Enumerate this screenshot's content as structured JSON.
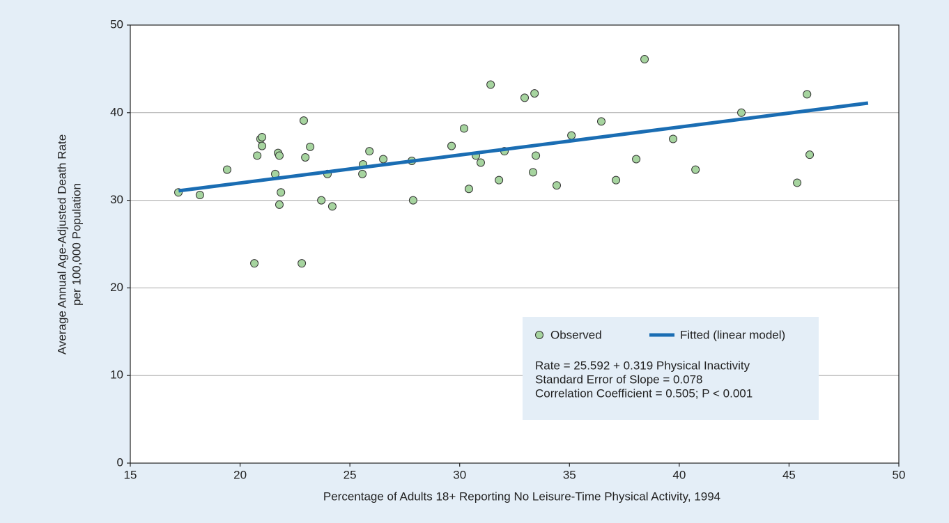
{
  "chart_data": {
    "type": "scatter",
    "xlabel": "Percentage of Adults 18+ Reporting No Leisure-Time Physical Activity, 1994",
    "ylabel": [
      "Average Annual Age-Adjusted Death Rate",
      "per 100,000 Population"
    ],
    "xlim": [
      15,
      50
    ],
    "xticks": [
      15,
      20,
      25,
      30,
      35,
      40,
      45,
      50
    ],
    "ylim": [
      0,
      50
    ],
    "yticks": [
      0,
      10,
      20,
      30,
      40,
      50
    ],
    "grid": true,
    "legend": "lower right",
    "series": [
      {
        "name": "Observed",
        "type": "scatter",
        "color": "#a6d49f",
        "x": [
          17.19,
          18.17,
          19.41,
          20.65,
          20.78,
          20.93,
          21.0,
          21.0,
          21.6,
          21.73,
          21.79,
          21.79,
          21.86,
          22.81,
          22.9,
          22.97,
          23.19,
          23.7,
          23.98,
          24.2,
          25.57,
          25.6,
          25.89,
          26.52,
          27.82,
          27.88,
          29.63,
          30.2,
          30.42,
          30.74,
          30.96,
          31.41,
          31.79,
          32.04,
          32.96,
          33.34,
          33.41,
          33.47,
          34.42,
          35.09,
          36.45,
          37.12,
          38.04,
          38.42,
          39.72,
          40.74,
          42.83,
          45.37,
          45.82,
          45.94
        ],
        "values": [
          30.9,
          30.6,
          33.5,
          22.8,
          35.1,
          37.0,
          37.2,
          36.2,
          33.0,
          35.4,
          35.1,
          29.5,
          30.9,
          22.8,
          39.1,
          34.9,
          36.1,
          30.0,
          33.0,
          29.3,
          33.0,
          34.1,
          35.6,
          34.7,
          34.5,
          30.0,
          36.2,
          38.2,
          31.3,
          35.1,
          34.3,
          43.2,
          32.3,
          35.6,
          41.7,
          33.2,
          42.2,
          35.1,
          31.7,
          37.4,
          39.0,
          32.3,
          34.7,
          46.1,
          37.0,
          33.5,
          40.0,
          32.0,
          42.1,
          35.2
        ]
      },
      {
        "name": "Fitted (linear model)",
        "type": "line",
        "color": "#1a6db3",
        "x": [
          17.2,
          48.6
        ],
        "values": [
          31.08,
          41.1
        ]
      }
    ],
    "annotations": [
      "Rate = 25.592 + 0.319 Physical Inactivity",
      "Standard Error of Slope = 0.078",
      "Correlation Coefficient = 0.505; P < 0.001"
    ]
  }
}
